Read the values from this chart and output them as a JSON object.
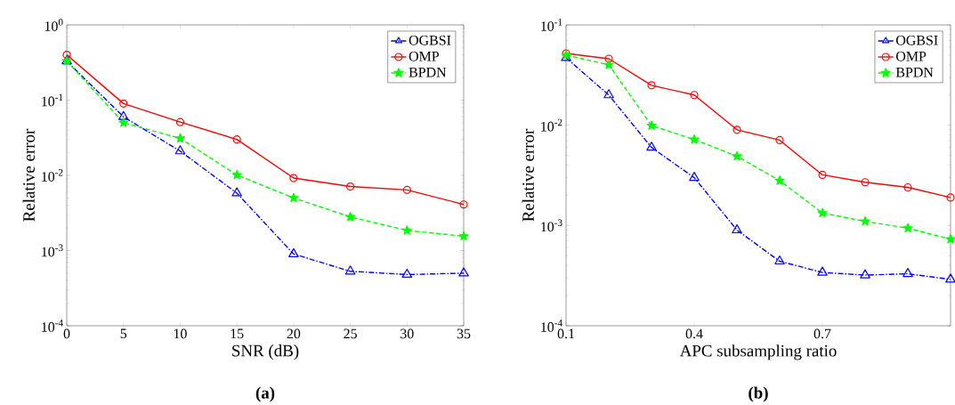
{
  "chart_data": [
    {
      "type": "line",
      "xlabel": "SNR (dB)",
      "ylabel": "Relative error",
      "annotations": [
        "(a)"
      ],
      "log": "y",
      "grid": false,
      "legend": "top right",
      "xlim": [
        0,
        35
      ],
      "xticks": [
        0,
        5,
        10,
        15,
        20,
        25,
        30,
        35
      ],
      "ylim": [
        0.0001,
        1
      ],
      "yticks": [
        {
          "value": 0.0001,
          "label": "10$^{-4}$"
        },
        {
          "value": 0.001,
          "label": "10$^{-3}$"
        },
        {
          "value": 0.01,
          "label": "10$^{-2}$"
        },
        {
          "value": 0.1,
          "label": "10$^{-1}$"
        },
        {
          "value": 1,
          "label": "10$^{0}$"
        }
      ],
      "x": [
        0,
        5,
        10,
        15,
        20,
        25,
        30,
        35
      ],
      "series": [
        {
          "name": "OGBSI",
          "color": "#0000ff",
          "marker": "triangle",
          "line_style": "dashdot",
          "values": [
            0.33,
            0.06,
            0.021,
            0.0058,
            0.0009,
            0.00053,
            0.00048,
            0.0005
          ]
        },
        {
          "name": "OMP",
          "color": "#ff0000",
          "marker": "circle",
          "line_style": "solid",
          "values": [
            0.4,
            0.09,
            0.051,
            0.03,
            0.0092,
            0.0071,
            0.0064,
            0.0041
          ]
        },
        {
          "name": "BPDN",
          "color": "#00ff00",
          "marker": "star",
          "line_style": "dashed",
          "values": [
            0.33,
            0.05,
            0.031,
            0.0101,
            0.005,
            0.0028,
            0.00185,
            0.00155
          ]
        }
      ]
    },
    {
      "type": "line",
      "xlabel": "APC subsampling ratio",
      "ylabel": "Relative error",
      "annotations": [
        "(b)"
      ],
      "log": "y",
      "grid": false,
      "legend": "top right",
      "xlim": [
        0.1,
        1.0
      ],
      "xticks": [
        0.1,
        0.4,
        0.7
      ],
      "ylim": [
        0.0001,
        0.1
      ],
      "yticks": [
        {
          "value": 0.0001,
          "label": "10$^{-4}$"
        },
        {
          "value": 0.001,
          "label": "10$^{-3}$"
        },
        {
          "value": 0.01,
          "label": "10$^{-2}$"
        },
        {
          "value": 0.1,
          "label": "10$^{-1}$"
        }
      ],
      "x": [
        0.1,
        0.2,
        0.3,
        0.4,
        0.5,
        0.6,
        0.7,
        0.8,
        0.9,
        1.0
      ],
      "series": [
        {
          "name": "OGBSI",
          "color": "#0000ff",
          "marker": "triangle",
          "line_style": "dashdot",
          "values": [
            0.047,
            0.02,
            0.006,
            0.003,
            0.0009,
            0.00044,
            0.00034,
            0.00032,
            0.00033,
            0.00029
          ]
        },
        {
          "name": "OMP",
          "color": "#ff0000",
          "marker": "circle",
          "line_style": "solid",
          "values": [
            0.052,
            0.046,
            0.025,
            0.02,
            0.009,
            0.0071,
            0.0032,
            0.0027,
            0.0024,
            0.0019
          ]
        },
        {
          "name": "BPDN",
          "color": "#00ff00",
          "marker": "star",
          "line_style": "dashed",
          "values": [
            0.05,
            0.04,
            0.0099,
            0.0072,
            0.0049,
            0.0028,
            0.00133,
            0.0011,
            0.00094,
            0.00073
          ]
        }
      ]
    }
  ]
}
